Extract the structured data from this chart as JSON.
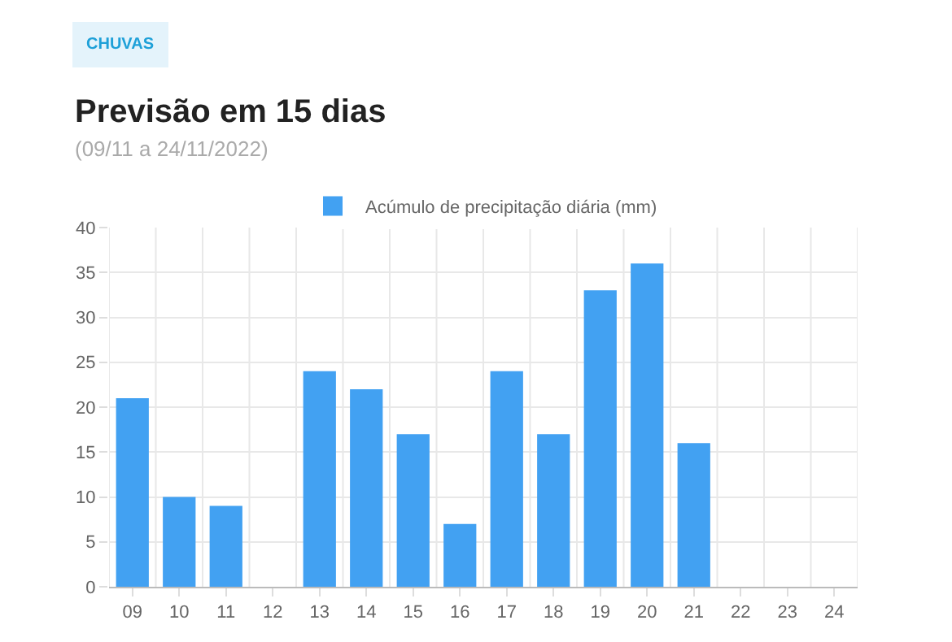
{
  "chart_data": {
    "type": "bar",
    "title": "Previsão em 15 dias",
    "subtitle": "(09/11 a 24/11/2022)",
    "annotations": [
      "CHUVAS"
    ],
    "categories": [
      "09",
      "10",
      "11",
      "12",
      "13",
      "14",
      "15",
      "16",
      "17",
      "18",
      "19",
      "20",
      "21",
      "22",
      "23",
      "24"
    ],
    "series": [
      {
        "name": "Acúmulo de precipitação diária (mm)",
        "color": "#42a1f2",
        "values": [
          21,
          10,
          9,
          0,
          24,
          22,
          17,
          7,
          24,
          17,
          33,
          36,
          16,
          0,
          0,
          0
        ]
      }
    ],
    "ylim": [
      0,
      40
    ],
    "yticks": [
      0,
      5,
      10,
      15,
      20,
      25,
      30,
      35,
      40
    ],
    "grid": true,
    "legend": "top"
  }
}
